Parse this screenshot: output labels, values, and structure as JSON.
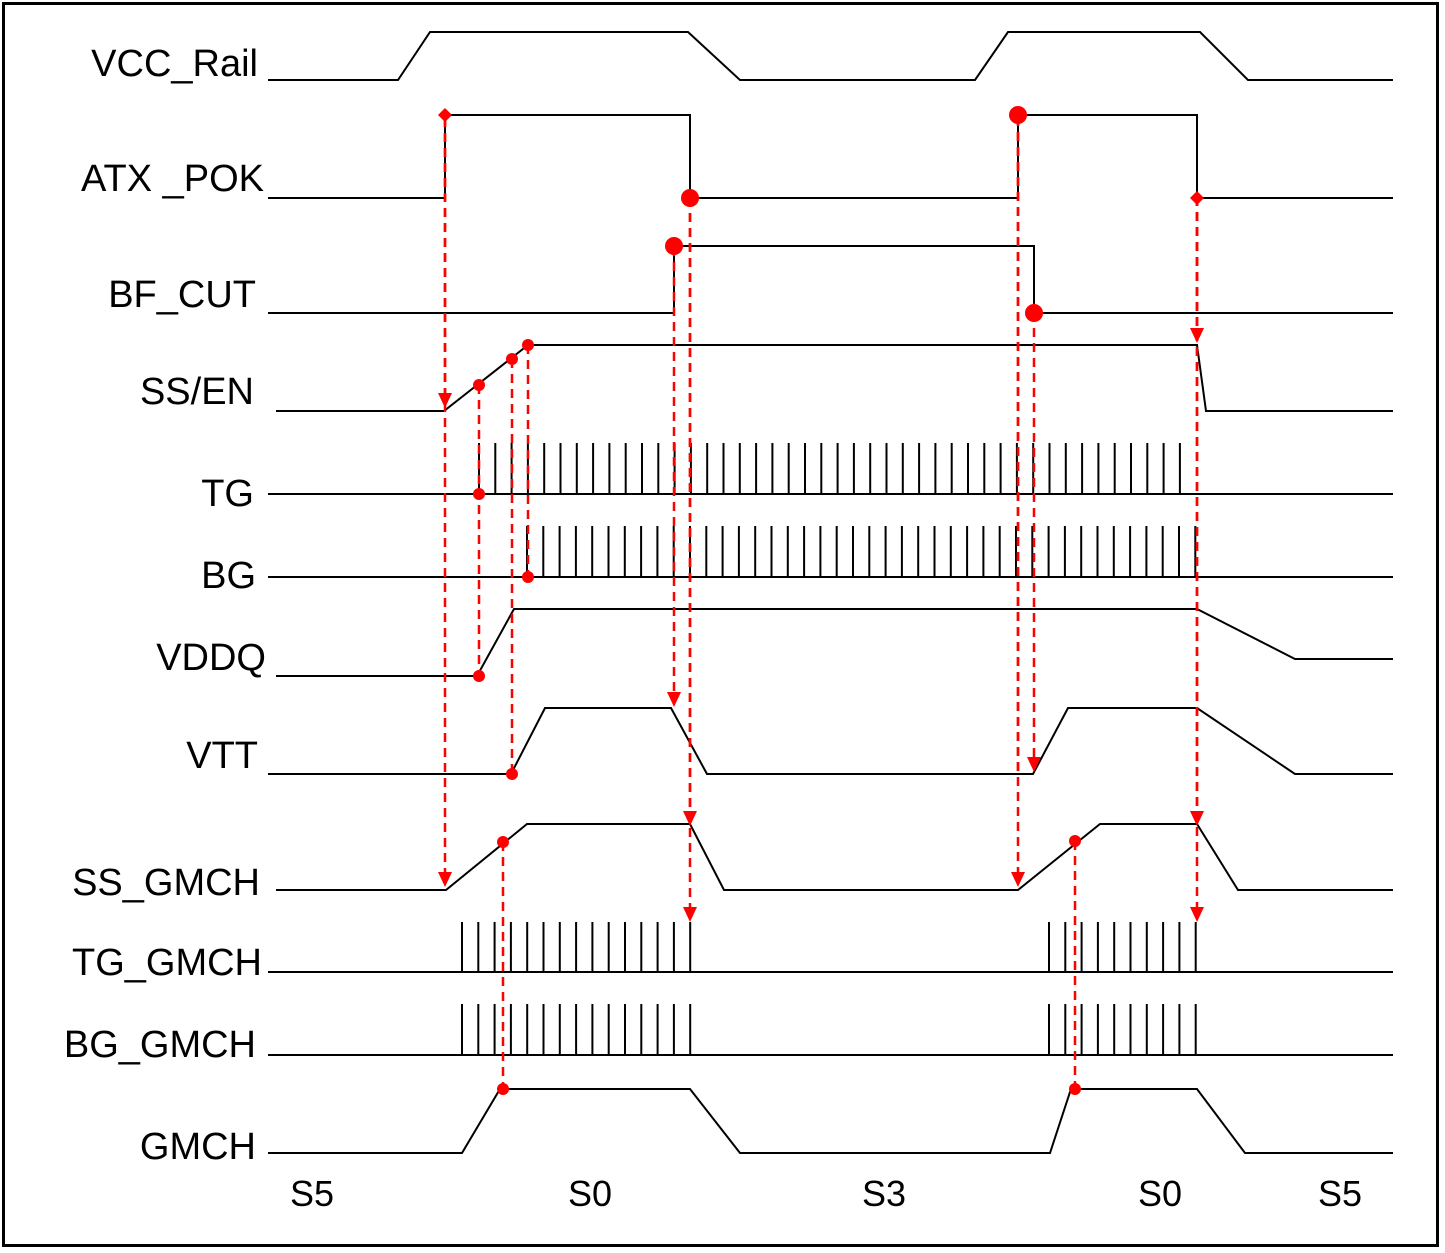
{
  "signals": [
    {
      "name": "VCC_Rail",
      "label": "VCC_Rail"
    },
    {
      "name": "ATX_POK",
      "label": "ATX _POK"
    },
    {
      "name": "BF_CUT",
      "label": "BF_CUT"
    },
    {
      "name": "SS_EN",
      "label": "SS/EN"
    },
    {
      "name": "TG",
      "label": "TG"
    },
    {
      "name": "BG",
      "label": "BG"
    },
    {
      "name": "VDDQ",
      "label": "VDDQ"
    },
    {
      "name": "VTT",
      "label": "VTT"
    },
    {
      "name": "SS_GMCH",
      "label": "SS_GMCH"
    },
    {
      "name": "TG_GMCH",
      "label": "TG_GMCH"
    },
    {
      "name": "BG_GMCH",
      "label": "BG_GMCH"
    },
    {
      "name": "GMCH",
      "label": "GMCH"
    }
  ],
  "states": [
    "S5",
    "S0",
    "S3",
    "S0",
    "S5"
  ],
  "colors": {
    "waveform": "#000000",
    "dependency": "#ff0000"
  }
}
